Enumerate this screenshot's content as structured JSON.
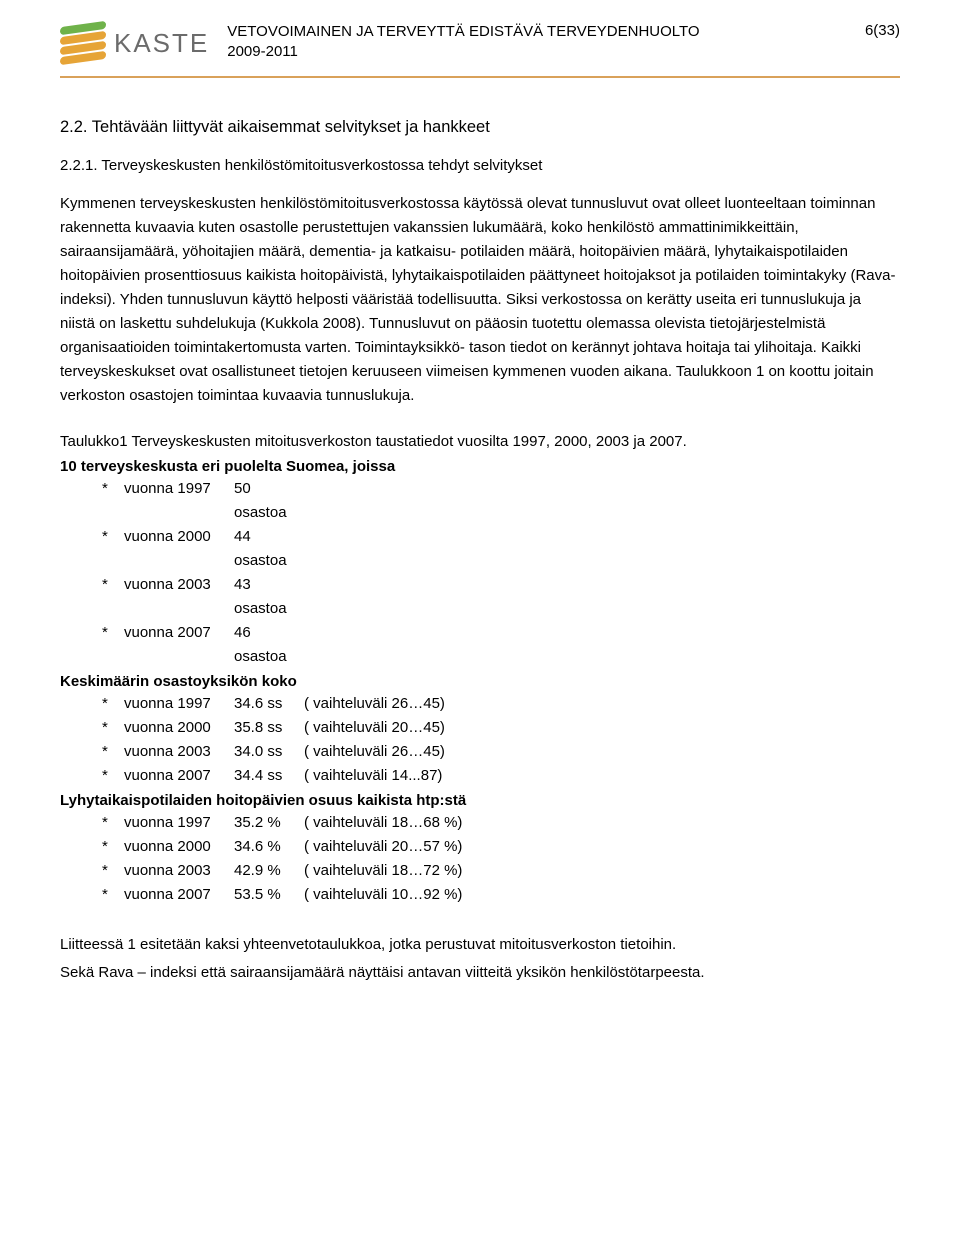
{
  "header": {
    "logo_text": "KASTE",
    "wave_colors": [
      "#6fb24a",
      "#e6a437",
      "#e6a437",
      "#e6a437"
    ],
    "title_line1": "VETOVOIMAINEN JA TERVEYTTÄ EDISTÄVÄ TERVEYDENHUOLTO",
    "title_line2": "2009-2011",
    "page_number": "6(33)",
    "divider_color": "#d9a15a"
  },
  "section": {
    "heading": "2.2. Tehtävään liittyvät aikaisemmat selvitykset ja hankkeet",
    "subheading": "2.2.1. Terveyskeskusten henkilöstömitoitusverkostossa tehdyt selvitykset",
    "para1": "Kymmenen terveyskeskusten henkilöstömitoitusverkostossa käytössä olevat tunnusluvut ovat olleet luonteeltaan toiminnan rakennetta kuvaavia kuten osastolle perustettujen vakanssien lukumäärä, koko henkilöstö ammattinimikkeittäin, sairaansijamäärä, yöhoitajien määrä, dementia- ja katkaisu- potilaiden määrä, hoitopäivien määrä, lyhytaikaispotilaiden hoitopäivien prosenttiosuus kaikista hoitopäivistä, lyhytaikaispotilaiden päättyneet hoitojaksot ja potilaiden toimintakyky (Rava-indeksi). Yhden tunnusluvun käyttö helposti vääristää todellisuutta. Siksi verkostossa on kerätty useita eri tunnuslukuja ja niistä on laskettu suhdelukuja (Kukkola 2008). Tunnusluvut on pääosin tuotettu olemassa olevista tietojärjestelmistä organisaatioiden toimintakertomusta varten. Toimintayksikkö- tason tiedot on kerännyt johtava hoitaja tai ylihoitaja. Kaikki terveyskeskukset ovat osallistuneet tietojen keruuseen viimeisen kymmenen vuoden aikana. Taulukkoon 1 on koottu joitain verkoston osastojen toimintaa kuvaavia tunnuslukuja.",
    "table_caption": "Taulukko1 Terveyskeskusten mitoitusverkoston taustatiedot vuosilta 1997, 2000, 2003 ja 2007."
  },
  "groups": [
    {
      "heading": "10 terveyskeskusta eri puolelta Suomea, joissa",
      "rows": [
        {
          "year": "vuonna 1997",
          "value": "50 osastoa",
          "extra": ""
        },
        {
          "year": "vuonna 2000",
          "value": "44 osastoa",
          "extra": ""
        },
        {
          "year": "vuonna 2003",
          "value": "43 osastoa",
          "extra": ""
        },
        {
          "year": "vuonna 2007",
          "value": "46 osastoa",
          "extra": ""
        }
      ]
    },
    {
      "heading": "Keskimäärin osastoyksikön koko",
      "rows": [
        {
          "year": "vuonna 1997",
          "value": "34.6 ss",
          "extra": "( vaihteluväli   26…45)"
        },
        {
          "year": "vuonna 2000",
          "value": "35.8 ss",
          "extra": "( vaihteluväli   20…45)"
        },
        {
          "year": "vuonna 2003",
          "value": "34.0 ss",
          "extra": "( vaihteluväli   26…45)"
        },
        {
          "year": "vuonna 2007",
          "value": "34.4 ss",
          "extra": "( vaihteluväli   14...87)"
        }
      ]
    },
    {
      "heading": "Lyhytaikaispotilaiden hoitopäivien osuus kaikista htp:stä",
      "rows": [
        {
          "year": "vuonna 1997",
          "value": "35.2 %",
          "extra": "( vaihteluväli   18…68 %)"
        },
        {
          "year": "vuonna 2000",
          "value": "34.6 %",
          "extra": "( vaihteluväli   20…57 %)"
        },
        {
          "year": "vuonna 2003",
          "value": "42.9 %",
          "extra": "( vaihteluväli   18…72 %)"
        },
        {
          "year": "vuonna 2007",
          "value": "53.5 %",
          "extra": "( vaihteluväli   10…92 %)"
        }
      ]
    }
  ],
  "footer": {
    "line1": "Liitteessä 1 esitetään kaksi yhteenvetotaulukkoa, jotka perustuvat mitoitusverkoston tietoihin.",
    "line2": "Sekä Rava – indeksi että sairaansijamäärä näyttäisi antavan viitteitä yksikön henkilöstötarpeesta."
  }
}
